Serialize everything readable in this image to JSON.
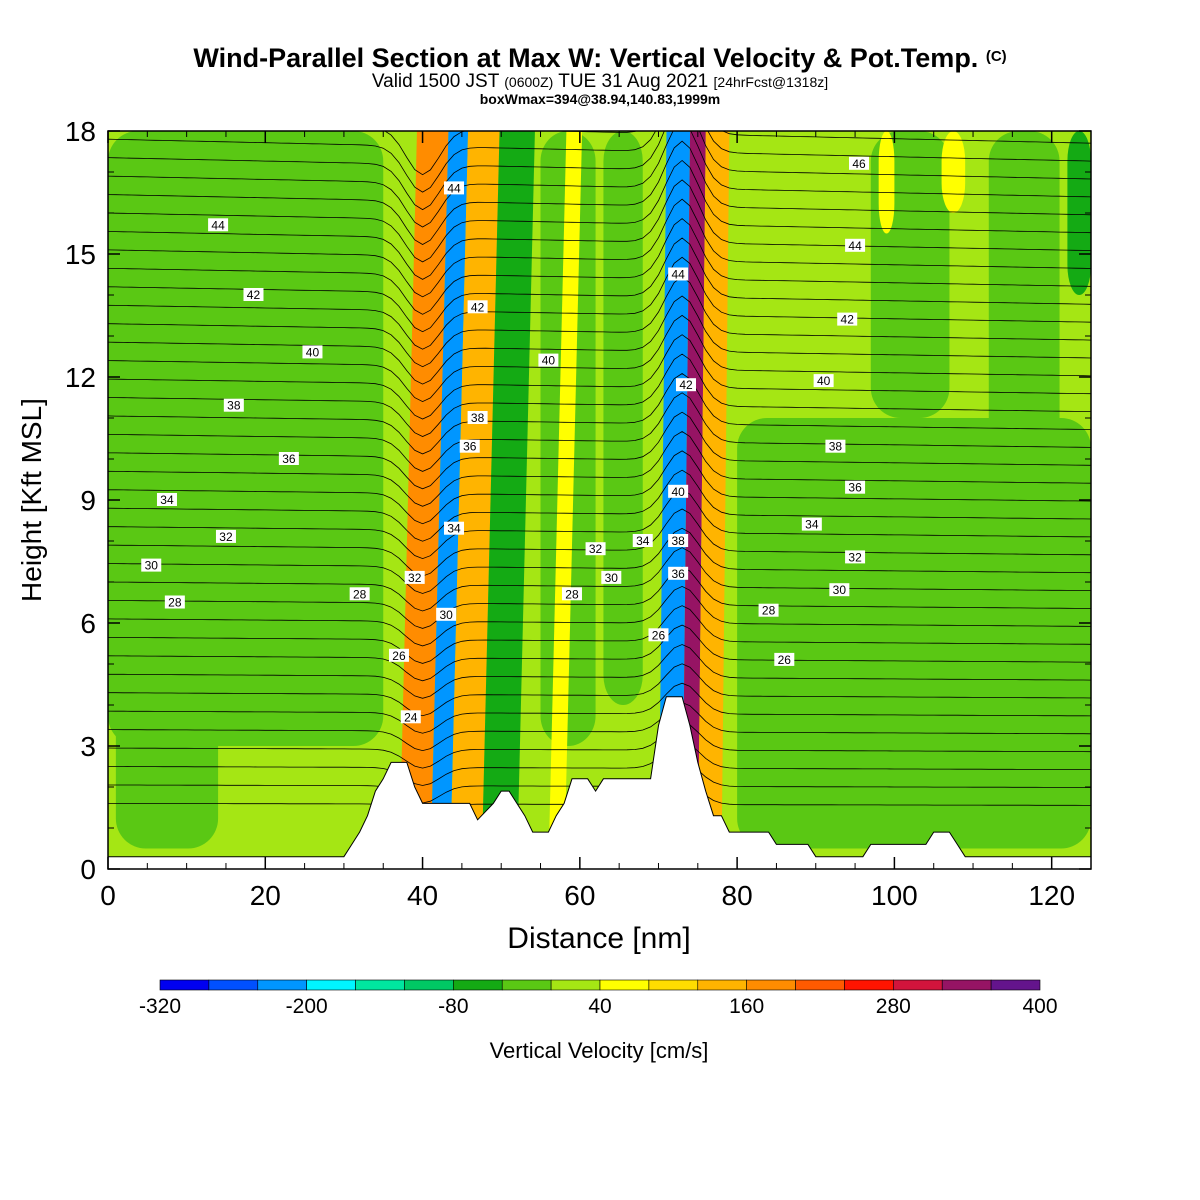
{
  "header": {
    "title": "Wind-Parallel Section at Max W: Vertical Velocity & Pot.Temp.",
    "copyright": "(C)",
    "valid_a": "Valid 1500 JST",
    "valid_utc": "(0600Z)",
    "valid_b": "TUE 31 Aug 2021",
    "forecast": "[24hrFcst@1318z]",
    "boxinfo": "boxWmax=394@38.94,140.83,1999m"
  },
  "chart_data": {
    "type": "contour",
    "xlabel": "Distance [nm]",
    "ylabel": "Height [Kft MSL]",
    "xlim": [
      0,
      125
    ],
    "ylim": [
      0,
      18
    ],
    "x_ticks": [
      0,
      20,
      40,
      60,
      80,
      100,
      120
    ],
    "y_ticks": [
      0,
      3,
      6,
      9,
      12,
      15,
      18
    ],
    "x_tick_labels": [
      "0",
      "20",
      "40",
      "60",
      "80",
      "100",
      "120"
    ],
    "y_tick_labels": [
      "0",
      "3",
      "6",
      "9",
      "12",
      "15",
      "18"
    ],
    "colorbar": {
      "label": "Vertical Velocity [cm/s]",
      "colors": [
        "#0000f0",
        "#0050ff",
        "#0096ff",
        "#00f5ff",
        "#00e6a0",
        "#00c864",
        "#14aa14",
        "#5ac814",
        "#a5e614",
        "#ffff00",
        "#ffdc00",
        "#ffb400",
        "#ff8c00",
        "#ff5a00",
        "#ff1400",
        "#d2143c",
        "#961464",
        "#64148c"
      ],
      "tick_values": [
        "-320",
        "-200",
        "-80",
        "40",
        "160",
        "280",
        "400"
      ],
      "tick_color_indices": [
        0,
        3,
        6,
        9,
        12,
        15,
        18
      ]
    },
    "terrain_kft": [
      [
        0,
        0.3
      ],
      [
        30,
        0.3
      ],
      [
        31,
        0.6
      ],
      [
        32,
        0.9
      ],
      [
        33,
        1.3
      ],
      [
        34,
        1.9
      ],
      [
        35,
        2.2
      ],
      [
        36,
        2.6
      ],
      [
        38,
        2.6
      ],
      [
        39,
        2.0
      ],
      [
        40,
        1.6
      ],
      [
        46,
        1.6
      ],
      [
        47,
        1.2
      ],
      [
        49,
        1.6
      ],
      [
        50,
        1.9
      ],
      [
        51,
        1.9
      ],
      [
        52,
        1.6
      ],
      [
        53,
        1.3
      ],
      [
        54,
        0.9
      ],
      [
        56,
        0.9
      ],
      [
        57,
        1.3
      ],
      [
        58,
        1.6
      ],
      [
        59,
        2.2
      ],
      [
        61,
        2.2
      ],
      [
        62,
        1.9
      ],
      [
        63,
        2.2
      ],
      [
        69,
        2.2
      ],
      [
        70,
        3.5
      ],
      [
        71,
        4.2
      ],
      [
        73,
        4.2
      ],
      [
        74,
        3.5
      ],
      [
        75,
        2.6
      ],
      [
        76,
        1.9
      ],
      [
        77,
        1.3
      ],
      [
        78,
        1.3
      ],
      [
        79,
        0.9
      ],
      [
        84,
        0.9
      ],
      [
        85,
        0.6
      ],
      [
        89,
        0.6
      ],
      [
        90,
        0.3
      ],
      [
        96,
        0.3
      ],
      [
        97,
        0.6
      ],
      [
        104,
        0.6
      ],
      [
        105,
        0.9
      ],
      [
        107,
        0.9
      ],
      [
        108,
        0.6
      ],
      [
        109,
        0.3
      ],
      [
        125,
        0.3
      ]
    ],
    "vv_bands_cm_s": [
      {
        "x": [
          37,
          41
        ],
        "value": 180
      },
      {
        "x": [
          41,
          43.5
        ],
        "value": -220
      },
      {
        "x": [
          43.5,
          47.5
        ],
        "value": 140
      },
      {
        "x": [
          47.5,
          52
        ],
        "value": -60
      },
      {
        "x": [
          56,
          58
        ],
        "value": 60
      },
      {
        "x": [
          70,
          73
        ],
        "value": -240
      },
      {
        "x": [
          73,
          75
        ],
        "value": 330
      },
      {
        "x": [
          75,
          78
        ],
        "value": 120
      }
    ],
    "theta_labels_c": [
      {
        "text": "44",
        "x": 14,
        "y": 15.7
      },
      {
        "text": "42",
        "x": 18.5,
        "y": 14.0
      },
      {
        "text": "40",
        "x": 26,
        "y": 12.6
      },
      {
        "text": "38",
        "x": 16,
        "y": 11.3
      },
      {
        "text": "36",
        "x": 23,
        "y": 10.0
      },
      {
        "text": "34",
        "x": 7.5,
        "y": 9.0
      },
      {
        "text": "32",
        "x": 15,
        "y": 8.1
      },
      {
        "text": "30",
        "x": 5.5,
        "y": 7.4
      },
      {
        "text": "28",
        "x": 8.5,
        "y": 6.5
      },
      {
        "text": "28",
        "x": 32,
        "y": 6.7
      },
      {
        "text": "26",
        "x": 37,
        "y": 5.2
      },
      {
        "text": "24",
        "x": 38.5,
        "y": 3.7
      },
      {
        "text": "32",
        "x": 39,
        "y": 7.1
      },
      {
        "text": "30",
        "x": 43,
        "y": 6.2
      },
      {
        "text": "34",
        "x": 44,
        "y": 8.3
      },
      {
        "text": "36",
        "x": 46,
        "y": 10.3
      },
      {
        "text": "38",
        "x": 47,
        "y": 11.0
      },
      {
        "text": "42",
        "x": 47,
        "y": 13.7
      },
      {
        "text": "44",
        "x": 44,
        "y": 16.6
      },
      {
        "text": "40",
        "x": 56,
        "y": 12.4
      },
      {
        "text": "32",
        "x": 62,
        "y": 7.8
      },
      {
        "text": "34",
        "x": 68,
        "y": 8.0
      },
      {
        "text": "30",
        "x": 64,
        "y": 7.1
      },
      {
        "text": "28",
        "x": 59,
        "y": 6.7
      },
      {
        "text": "26",
        "x": 70,
        "y": 5.7
      },
      {
        "text": "38",
        "x": 72.5,
        "y": 8.0
      },
      {
        "text": "36",
        "x": 72.5,
        "y": 7.2
      },
      {
        "text": "40",
        "x": 72.5,
        "y": 9.2
      },
      {
        "text": "42",
        "x": 73.5,
        "y": 11.8
      },
      {
        "text": "44",
        "x": 72.5,
        "y": 14.5
      },
      {
        "text": "46",
        "x": 95.5,
        "y": 17.2
      },
      {
        "text": "44",
        "x": 95,
        "y": 15.2
      },
      {
        "text": "42",
        "x": 94,
        "y": 13.4
      },
      {
        "text": "40",
        "x": 91,
        "y": 11.9
      },
      {
        "text": "38",
        "x": 92.5,
        "y": 10.3
      },
      {
        "text": "36",
        "x": 95,
        "y": 9.3
      },
      {
        "text": "34",
        "x": 89.5,
        "y": 8.4
      },
      {
        "text": "32",
        "x": 95,
        "y": 7.6
      },
      {
        "text": "30",
        "x": 93,
        "y": 6.8
      },
      {
        "text": "28",
        "x": 84,
        "y": 6.3
      },
      {
        "text": "26",
        "x": 86,
        "y": 5.1
      }
    ]
  }
}
